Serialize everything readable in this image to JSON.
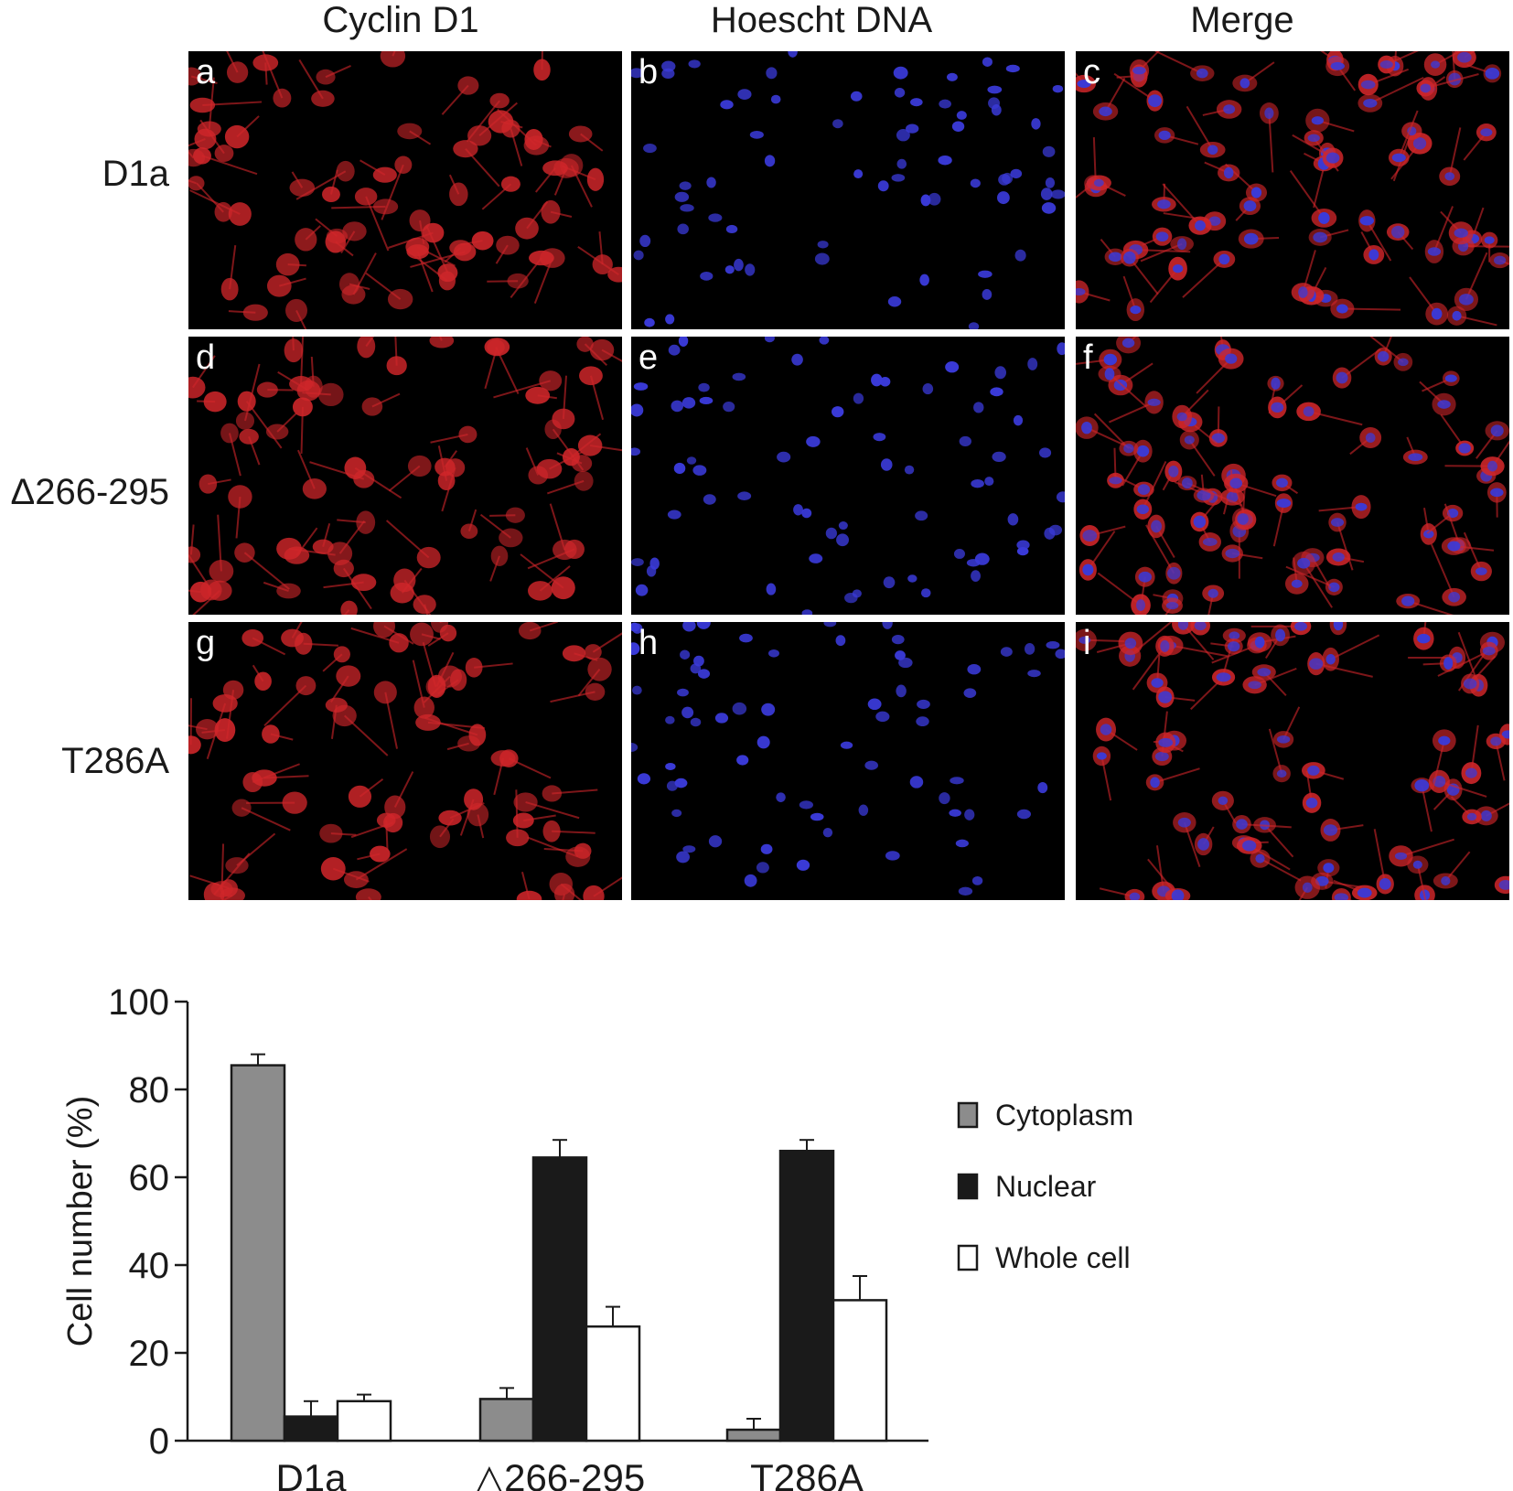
{
  "figure": {
    "columns": [
      "Cyclin D1",
      "Hoescht DNA",
      "Merge"
    ],
    "rows": [
      "D1a",
      "Δ266-295",
      "T286A"
    ],
    "panel_letters": [
      "a",
      "b",
      "c",
      "d",
      "e",
      "f",
      "g",
      "h",
      "i"
    ],
    "colors": {
      "cyclin": "#d0262a",
      "dna": "#3a3ad8",
      "background": "#000000"
    }
  },
  "chart_data": {
    "type": "bar",
    "categories": [
      "D1a",
      "△266-295",
      "T286A"
    ],
    "series": [
      {
        "name": "Cytoplasm",
        "values": [
          85.5,
          9.5,
          2.5
        ],
        "errors": [
          2.5,
          2.5,
          2.5
        ],
        "color": "#8c8c8c"
      },
      {
        "name": "Nuclear",
        "values": [
          5.5,
          64.5,
          66.0
        ],
        "errors": [
          3.5,
          4.0,
          2.5
        ],
        "color": "#1a1a1a"
      },
      {
        "name": "Whole cell",
        "values": [
          9.0,
          26.0,
          32.0
        ],
        "errors": [
          1.5,
          4.5,
          5.5
        ],
        "color": "#ffffff"
      }
    ],
    "ylabel": "Cell number (%)",
    "xlabel": "",
    "ylim": [
      0,
      100
    ],
    "yticks": [
      "0",
      "20",
      "40",
      "60",
      "80",
      "100"
    ],
    "legend_position": "right",
    "grid": false
  }
}
